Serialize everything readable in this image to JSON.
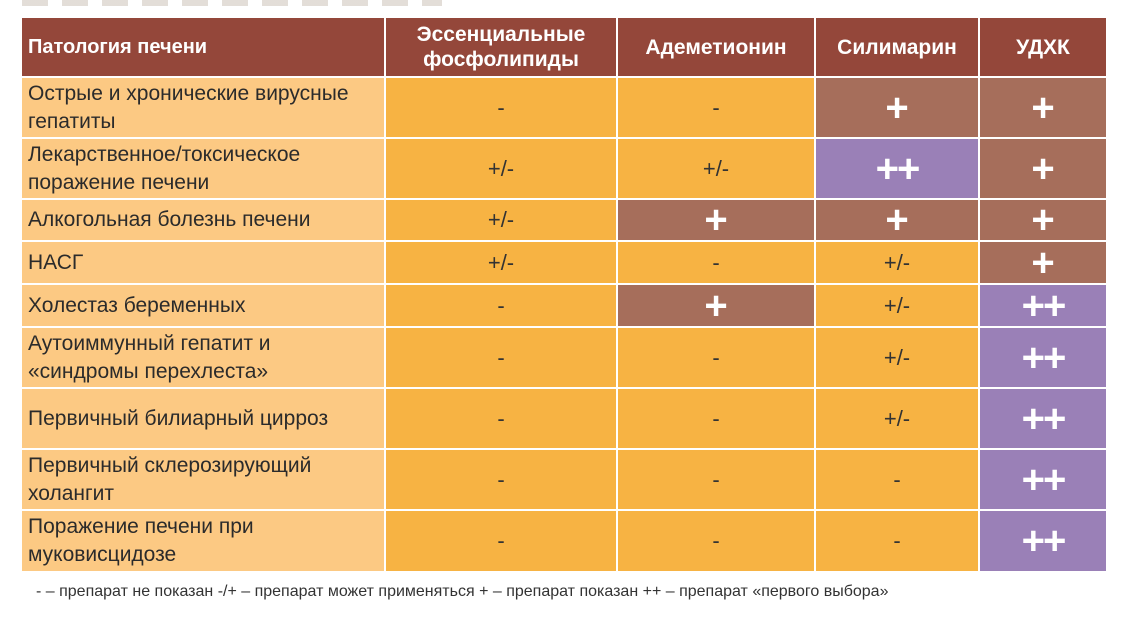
{
  "table": {
    "headers": [
      "Патология печени",
      "Эссенциальные фосфолипиды",
      "Адеметионин",
      "Силимарин",
      "УДХК"
    ],
    "rows": [
      {
        "pathology": "Острые и хронические вирусные гепатиты",
        "cells": [
          "-",
          "-",
          "+",
          "+"
        ]
      },
      {
        "pathology": "Лекарственное/токсическое поражение печени",
        "cells": [
          "+/-",
          "+/-",
          "++",
          "+"
        ]
      },
      {
        "pathology": "Алкогольная болезнь печени",
        "cells": [
          "+/-",
          "+",
          "+",
          "+"
        ]
      },
      {
        "pathology": "НАСГ",
        "cells": [
          "+/-",
          "-",
          "+/-",
          "+"
        ]
      },
      {
        "pathology": "Холестаз беременных",
        "cells": [
          "-",
          "+",
          "+/-",
          "++"
        ]
      },
      {
        "pathology": "Аутоиммунный гепатит и «синдромы перехлеста»",
        "cells": [
          "-",
          "-",
          "+/-",
          "++"
        ]
      },
      {
        "pathology": "Первичный билиарный цирроз",
        "cells": [
          "-",
          "-",
          "+/-",
          "++"
        ]
      },
      {
        "pathology": "Первичный склерозирующий холангит",
        "cells": [
          "-",
          "-",
          "-",
          "++"
        ]
      },
      {
        "pathology": "Поражение печени при муковисцидозе",
        "cells": [
          "-",
          "-",
          "-",
          "++"
        ]
      }
    ]
  },
  "legend": "- – препарат не показан -/+ – препарат может применяться + – препарат показан ++ – препарат «первого выбора»",
  "colors": {
    "header": "#94473a",
    "pathology_cell": "#fcc983",
    "not_indicated_or_maybe": "#f7b343",
    "indicated": "#a66e5b",
    "first_choice": "#9a80b7"
  }
}
